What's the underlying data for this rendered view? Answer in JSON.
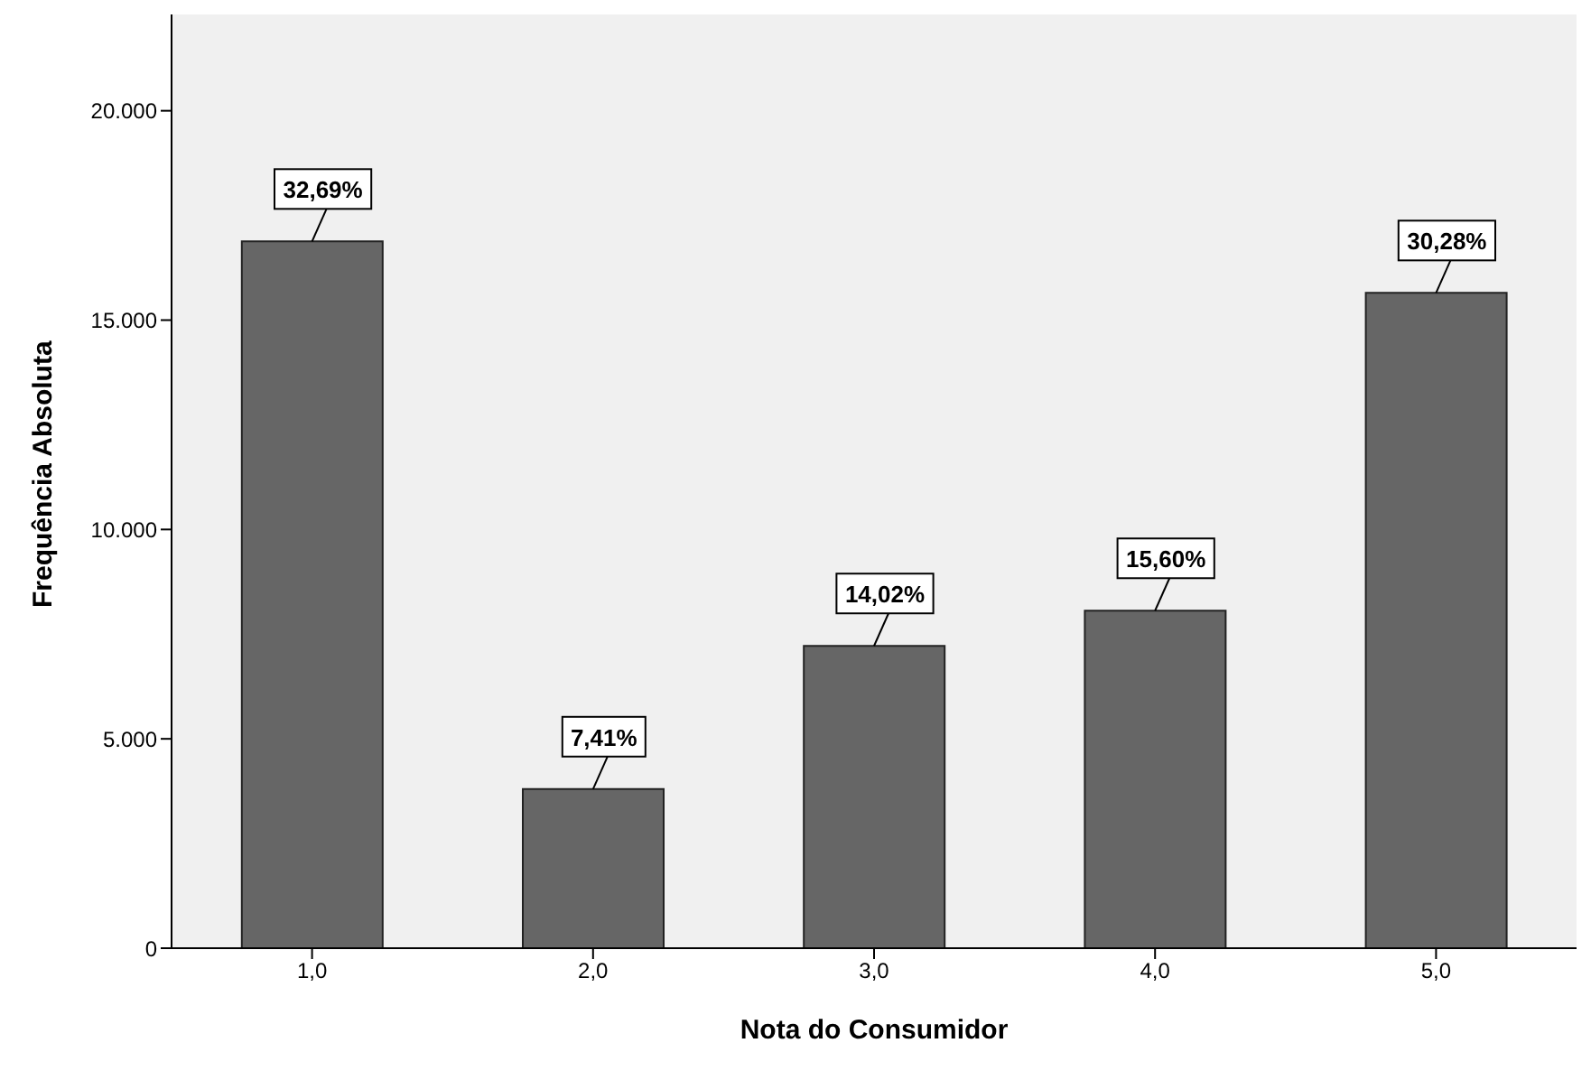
{
  "chart_data": {
    "type": "bar",
    "xlabel": "Nota do Consumidor",
    "ylabel": "Frequência Absoluta",
    "categories": [
      "1,0",
      "2,0",
      "3,0",
      "4,0",
      "5,0"
    ],
    "values": [
      16880,
      3800,
      7220,
      8060,
      15650
    ],
    "annotations": [
      {
        "text": "32,69%",
        "x": "1,0",
        "y": 16880
      },
      {
        "text": "7,41%",
        "x": "2,0",
        "y": 3800
      },
      {
        "text": "14,02%",
        "x": "3,0",
        "y": 7220
      },
      {
        "text": "15,60%",
        "x": "4,0",
        "y": 8060
      },
      {
        "text": "30,28%",
        "x": "5,0",
        "y": 15650
      }
    ],
    "color": "#666666",
    "ylim": [
      0,
      22300
    ],
    "yticks": [
      0,
      {
        "value": 5000,
        "label": "5.000"
      },
      {
        "value": 10000,
        "label": "10.000"
      },
      {
        "value": 15000,
        "label": "15.000"
      },
      {
        "value": 20000,
        "label": "20.000"
      }
    ],
    "grid": false,
    "legend": false
  }
}
